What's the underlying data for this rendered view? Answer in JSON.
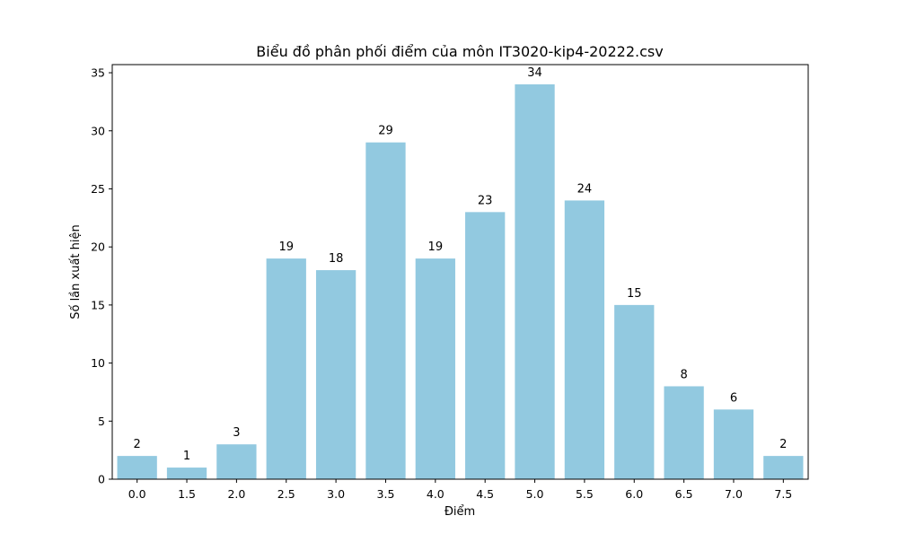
{
  "chart_data": {
    "type": "bar",
    "title": "Biểu đồ phân phối điểm của môn IT3020-kip4-20222.csv",
    "xlabel": "Điểm",
    "ylabel": "Số lần xuất hiện",
    "categories": [
      "0.0",
      "1.5",
      "2.0",
      "2.5",
      "3.0",
      "3.5",
      "4.0",
      "4.5",
      "5.0",
      "5.5",
      "6.0",
      "6.5",
      "7.0",
      "7.5"
    ],
    "values": [
      2,
      1,
      3,
      19,
      18,
      29,
      19,
      23,
      34,
      24,
      15,
      8,
      6,
      2
    ],
    "ylim": [
      0,
      35.7
    ],
    "yticks": [
      0,
      5,
      10,
      15,
      20,
      25,
      30,
      35
    ],
    "bar_color": "#92c9e0",
    "grid": false,
    "legend": "none"
  }
}
